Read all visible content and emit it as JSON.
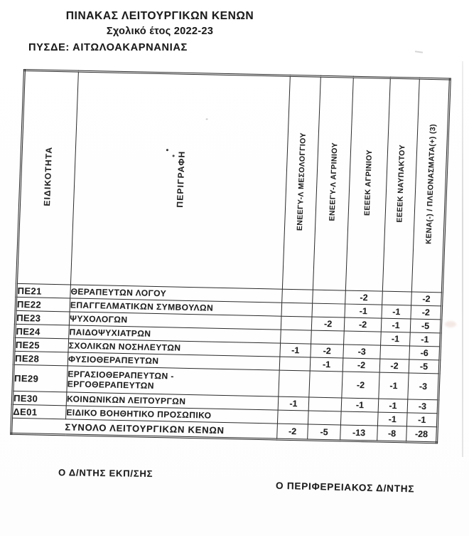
{
  "titles": {
    "main": "ΠΙΝΑΚΑΣ ΛΕΙΤΟΥΡΓΙΚΩΝ ΚΕΝΩΝ",
    "subtitle": "Σχολικό έτος 2022-23",
    "region": "ΠΥΣΔΕ: ΑΙΤΩΛΟΑΚΑΡΝΑΝΙΑΣ"
  },
  "table": {
    "row_headers": [
      "ΕΙΔΙΚΟΤΗΤΑ",
      "ΠΕΡΙΓΡΑΦΗ"
    ],
    "school_columns": [
      "ΕΝΕΕΓΥ-Λ ΜΕΣΟΛΟΓΓΙΟΥ",
      "ΕΝΕΕΓΥ-Λ ΑΓΡΙΝΙΟΥ",
      "ΕΕΕΕΚ ΑΓΡΙΝΙΟΥ",
      "ΕΕΕΕΚ ΝΑΥΠΑΚΤΟΥ",
      "ΚΕΝΑ(-) / ΠΛΕΟΝΑΣΜΑΤΑ(+) (3)"
    ],
    "rows": [
      {
        "code": "ΠΕ21",
        "description": "ΘΕΡΑΠΕΥΤΩΝ ΛΟΓΟΥ",
        "values": [
          "",
          "",
          "-2",
          "",
          "-2"
        ]
      },
      {
        "code": "ΠΕ22",
        "description": "ΕΠΑΓΓΕΛΜΑΤΙΚΩΝ ΣΥΜΒΟΥΛΩΝ",
        "values": [
          "",
          "",
          "-1",
          "-1",
          "-2"
        ]
      },
      {
        "code": "ΠΕ23",
        "description": "ΨΥΧΟΛΟΓΩΝ",
        "values": [
          "",
          "-2",
          "-2",
          "-1",
          "-5"
        ]
      },
      {
        "code": "ΠΕ24",
        "description": "ΠΑΙΔΟΨΥΧΙΑΤΡΩΝ",
        "values": [
          "",
          "",
          "",
          "-1",
          "-1"
        ]
      },
      {
        "code": "ΠΕ25",
        "description": "ΣΧΟΛΙΚΩΝ ΝΟΣΗΛΕΥΤΩΝ",
        "values": [
          "-1",
          "-2",
          "-3",
          "",
          "-6"
        ]
      },
      {
        "code": "ΠΕ28",
        "description": "ΦΥΣΙΟΘΕΡΑΠΕΥΤΩΝ",
        "values": [
          "",
          "-1",
          "-2",
          "-2",
          "-5"
        ]
      },
      {
        "code": "ΠΕ29",
        "description": "ΕΡΓΑΣΙΟΘΕΡΑΠΕΥΤΩΝ -\nΕΡΓΟΘΕΡΑΠΕΥΤΩΝ",
        "values": [
          "",
          "",
          "-2",
          "-1",
          "-3"
        ],
        "tall": true
      },
      {
        "code": "ΠΕ30",
        "description": "ΚΟΙΝΩΝΙΚΩΝ ΛΕΙΤΟΥΡΓΩΝ",
        "values": [
          "-1",
          "",
          "-1",
          "-1",
          "-3"
        ]
      },
      {
        "code": "ΔΕ01",
        "description": "ΕΙΔΙΚΟ ΒΟΗΘΗΤΙΚΟ ΠΡΟΣΩΠΙΚΟ",
        "values": [
          "",
          "",
          "",
          "-1",
          "-1"
        ]
      }
    ],
    "total": {
      "label": "ΣΥΝΟΛΟ ΛΕΙΤΟΥΡΓΙΚΩΝ ΚΕΝΩΝ",
      "values": [
        "-2",
        "-5",
        "-13",
        "-8",
        "-28"
      ]
    }
  },
  "footer": {
    "left": "Ο Δ/ΝΤΗΣ ΕΚΠ/ΣΗΣ",
    "right": "Ο ΠΕΡΙΦΕΡΕΙΑΚΟΣ Δ/ΝΤΗΣ"
  },
  "colors": {
    "ink": "#222222",
    "line": "#2a2a2a",
    "page_edge": "#d8d8d8"
  }
}
